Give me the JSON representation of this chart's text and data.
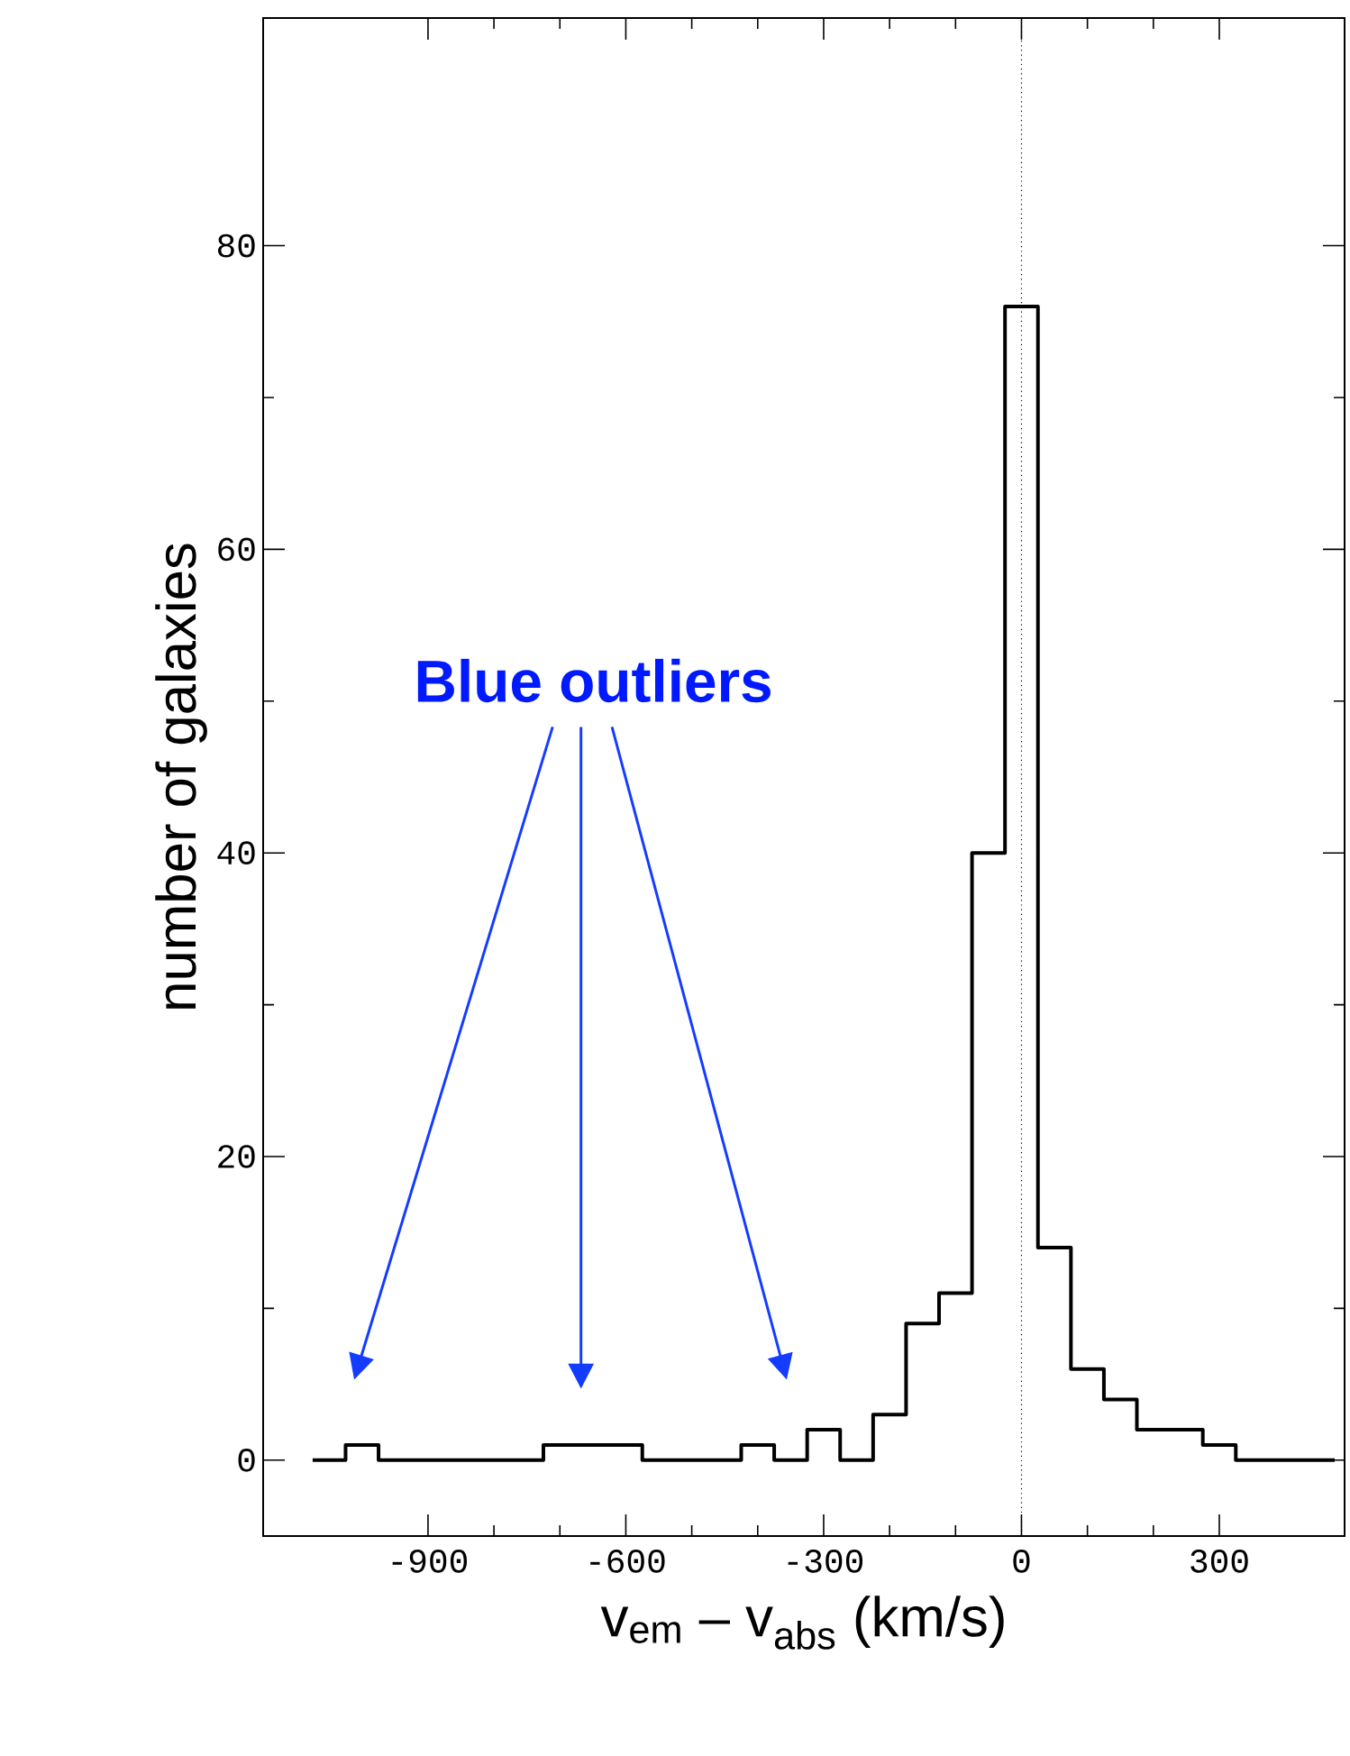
{
  "chart_data": {
    "type": "histogram",
    "xlabel": "v$_{em}$ – v$_{abs}$ (km/s)",
    "ylabel": "number of galaxies",
    "bins": [
      -1075,
      -1025,
      -975,
      -925,
      -875,
      -825,
      -775,
      -725,
      -675,
      -625,
      -575,
      -525,
      -475,
      -425,
      -375,
      -325,
      -275,
      -225,
      -175,
      -125,
      -75,
      -25,
      25,
      75,
      125,
      175,
      225,
      275,
      325,
      375,
      425,
      475
    ],
    "values": [
      0,
      1,
      0,
      0,
      0,
      0,
      0,
      1,
      1,
      1,
      0,
      0,
      0,
      1,
      0,
      2,
      0,
      3,
      9,
      11,
      40,
      76,
      14,
      6,
      4,
      2,
      2,
      1,
      0,
      0,
      0
    ],
    "color": "#000000",
    "xlim": [
      -1150,
      490
    ],
    "ylim": [
      -5,
      95
    ],
    "xticks": [
      -900,
      -600,
      -300,
      0,
      300
    ],
    "yticks": [
      0,
      20,
      40,
      60,
      80
    ],
    "ref_lines": [
      {
        "axis": "x",
        "value": 0,
        "color": "#000000",
        "line_style": "dotted"
      }
    ],
    "annotations": [
      "Blue outliers"
    ],
    "grid": false
  }
}
